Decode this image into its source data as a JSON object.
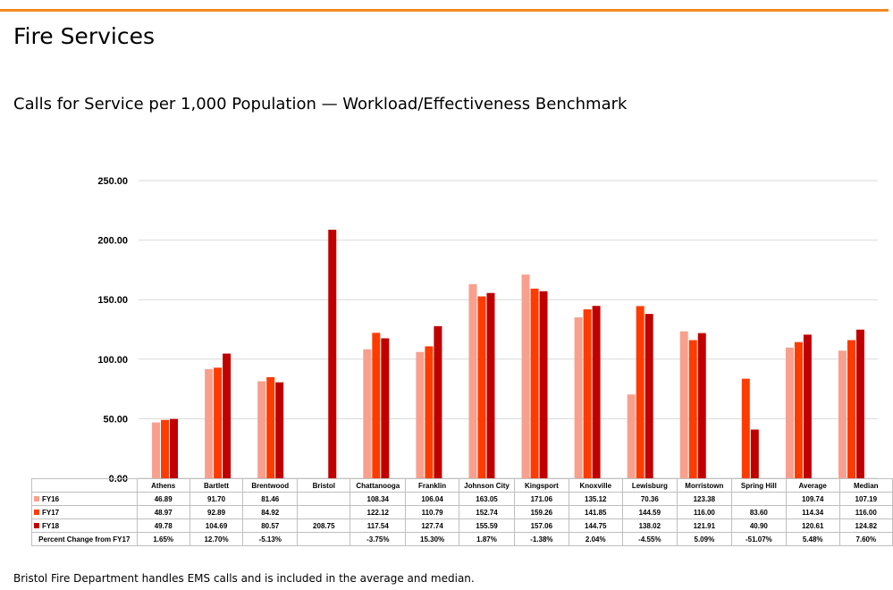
{
  "page": {
    "title": "Fire Services",
    "subtitle": "Calls for Service per 1,000 Population — Workload/Effectiveness Benchmark",
    "footnote": "Bristol Fire Department handles EMS calls and is included in the average and median."
  },
  "chart_data": {
    "type": "bar",
    "title": "",
    "xlabel": "",
    "ylabel": "",
    "ylim": [
      0,
      250
    ],
    "yticks": [
      "0.00",
      "50.00",
      "100.00",
      "150.00",
      "200.00",
      "250.00"
    ],
    "grid": true,
    "legend": "data-table-rows",
    "categories": [
      "Athens",
      "Bartlett",
      "Brentwood",
      "Bristol",
      "Chattanooga",
      "Franklin",
      "Johnson City",
      "Kingsport",
      "Knoxville",
      "Lewisburg",
      "Morristown",
      "Spring Hill",
      "Average",
      "Median"
    ],
    "series": [
      {
        "name": "FY16",
        "color": "#f8a08d",
        "values": [
          46.89,
          91.7,
          81.46,
          null,
          108.34,
          106.04,
          163.05,
          171.06,
          135.12,
          70.36,
          123.38,
          null,
          109.74,
          107.19
        ],
        "labels": [
          "46.89",
          "91.70",
          "81.46",
          "",
          "108.34",
          "106.04",
          "163.05",
          "171.06",
          "135.12",
          "70.36",
          "123.38",
          "",
          "109.74",
          "107.19"
        ]
      },
      {
        "name": "FY17",
        "color": "#ff3b00",
        "values": [
          48.97,
          92.89,
          84.92,
          null,
          122.12,
          110.79,
          152.74,
          159.26,
          141.85,
          144.59,
          116.0,
          83.6,
          114.34,
          116.0
        ],
        "labels": [
          "48.97",
          "92.89",
          "84.92",
          "",
          "122.12",
          "110.79",
          "152.74",
          "159.26",
          "141.85",
          "144.59",
          "116.00",
          "83.60",
          "114.34",
          "116.00"
        ]
      },
      {
        "name": "FY18",
        "color": "#c00000",
        "values": [
          49.78,
          104.69,
          80.57,
          208.75,
          117.54,
          127.74,
          155.59,
          157.06,
          144.75,
          138.02,
          121.91,
          40.9,
          120.61,
          124.82
        ],
        "labels": [
          "49.78",
          "104.69",
          "80.57",
          "208.75",
          "117.54",
          "127.74",
          "155.59",
          "157.06",
          "144.75",
          "138.02",
          "121.91",
          "40.90",
          "120.61",
          "124.82"
        ]
      }
    ],
    "extra_rows": [
      {
        "name": "Percent Change from FY17",
        "values": [
          "1.65%",
          "12.70%",
          "-5.13%",
          "",
          "-3.75%",
          "15.30%",
          "1.87%",
          "-1.38%",
          "2.04%",
          "-4.55%",
          "5.09%",
          "-51.07%",
          "5.48%",
          "7.60%"
        ]
      }
    ]
  }
}
